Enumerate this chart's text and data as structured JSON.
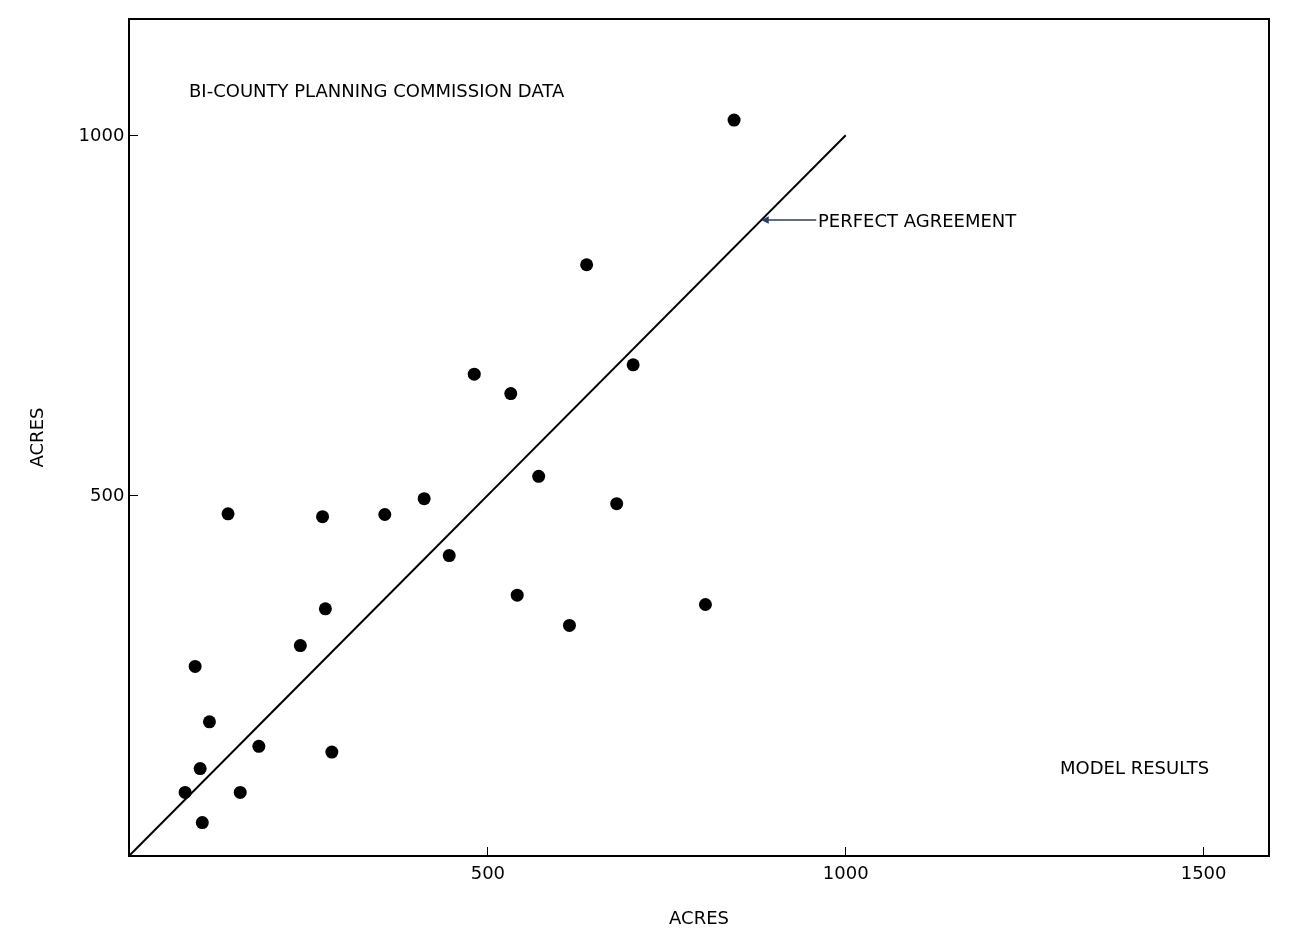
{
  "chart_data": {
    "type": "scatter",
    "xlabel": "ACRES",
    "ylabel": "ACRES",
    "xlim": [
      0,
      1590
    ],
    "ylim": [
      0,
      1160
    ],
    "xticks": [
      500,
      1000,
      1500
    ],
    "yticks": [
      500,
      1000
    ],
    "grid": false,
    "legend": false,
    "series": [
      {
        "marker": "circle",
        "color": "#000000",
        "x": [
          844,
          638,
          703,
          481,
          532,
          571,
          680,
          411,
          356,
          269,
          137,
          446,
          541,
          273,
          614,
          804,
          238,
          91,
          111,
          180,
          282,
          98,
          77,
          154,
          101
        ],
        "values": [
          1021,
          820,
          681,
          668,
          641,
          526,
          488,
          495,
          473,
          470,
          474,
          416,
          361,
          342,
          319,
          348,
          291,
          262,
          185,
          151,
          143,
          120,
          87,
          87,
          45
        ]
      },
      {
        "type": "line",
        "color": "#000000",
        "line_style": "solid",
        "x": [
          0,
          1000
        ],
        "values": [
          0,
          1000
        ]
      }
    ],
    "annotations": [
      "BI-COUNTY PLANNING COMMISSION DATA",
      {
        "text": "PERFECT AGREEMENT",
        "x": 882,
        "y": 882
      },
      "MODEL RESULTS"
    ]
  }
}
